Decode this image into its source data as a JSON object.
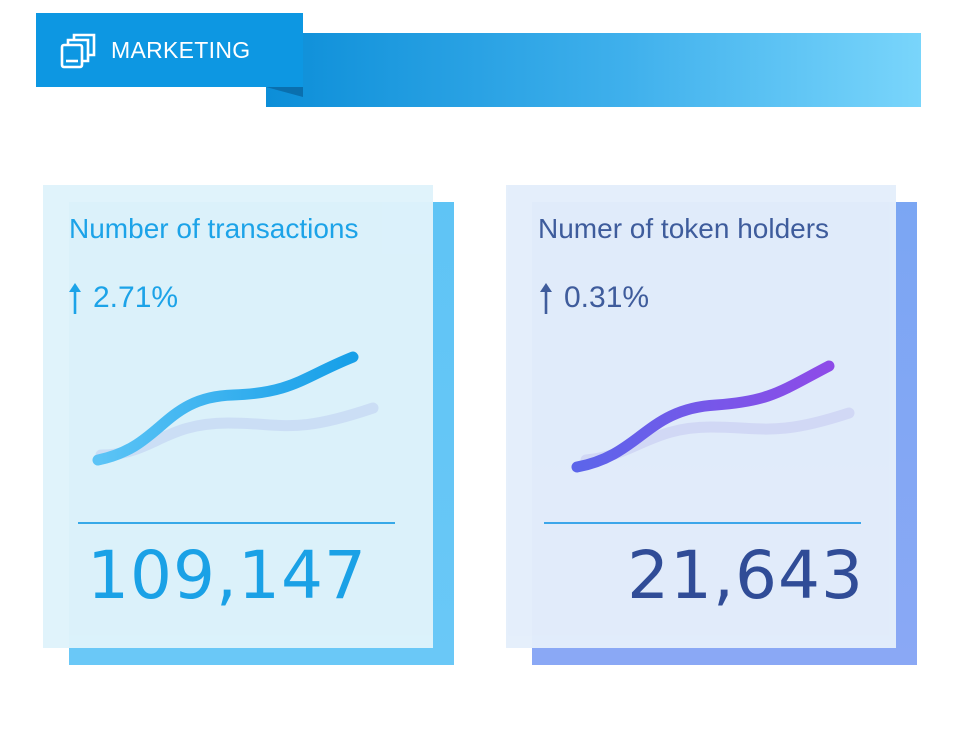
{
  "header": {
    "title": "MARKETING",
    "icon": "stacked-cards-icon",
    "colors": {
      "tab": "#0d97e2",
      "bar_start": "#0c8ed8",
      "bar_end": "#79d5fb"
    }
  },
  "cards": [
    {
      "title": "Number of  transactions",
      "change": "2.71%",
      "change_icon": "arrow-up-icon",
      "value": "109,147",
      "trend": "up",
      "colors": {
        "accent": "#1aa2e8",
        "line_start": "#5cc4f6",
        "line_end": "#149ee8",
        "shadow_line": "#c9d8f3"
      }
    },
    {
      "title": "Numer of token holders",
      "change": "0.31%",
      "change_icon": "arrow-up-icon",
      "value": "21,643",
      "trend": "up",
      "colors": {
        "accent": "#3d5a9a",
        "line_start": "#5b63ea",
        "line_end": "#8f49e8",
        "shadow_line": "#cfd5f5"
      }
    }
  ]
}
